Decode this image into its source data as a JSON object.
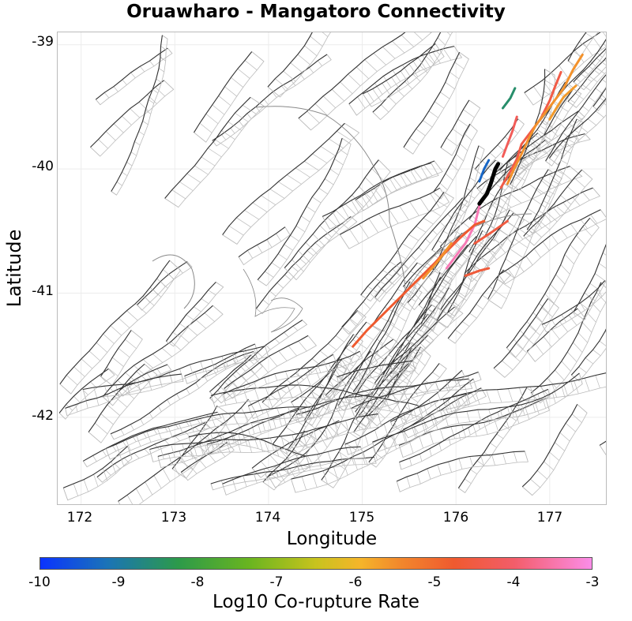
{
  "title": "Oruawharo - Mangatoro Connectivity",
  "axes": {
    "xlabel": "Longitude",
    "ylabel": "Latitude",
    "x_ticks": [
      "172",
      "173",
      "174",
      "175",
      "176",
      "177"
    ],
    "y_ticks": [
      "-39",
      "-40",
      "-41",
      "-42"
    ]
  },
  "colorbar": {
    "label": "Log10 Co-rupture Rate",
    "ticks": [
      "-10",
      "-9",
      "-8",
      "-7",
      "-6",
      "-5",
      "-4",
      "-3"
    ],
    "range": [
      -10,
      -3
    ]
  },
  "map": {
    "lon_range": [
      171.75,
      177.6
    ],
    "lat_range": [
      -42.7,
      -38.9
    ],
    "colors": {
      "fault_line": "#333333",
      "fault_patch": "#bbbbbb",
      "coast": "#888888",
      "target_fault": "#000000"
    },
    "target_fault": {
      "name": "Oruawharo - Mangatoro",
      "trace": [
        [
          176.25,
          -40.28
        ],
        [
          176.33,
          -40.2
        ],
        [
          176.37,
          -40.12
        ],
        [
          176.42,
          -40.0
        ],
        [
          176.45,
          -39.96
        ]
      ]
    },
    "connected_faults": [
      {
        "log10_rate": -3.4,
        "trace": [
          [
            175.9,
            -40.8
          ],
          [
            176.0,
            -40.7
          ],
          [
            176.1,
            -40.6
          ],
          [
            176.2,
            -40.45
          ],
          [
            176.25,
            -40.3
          ]
        ]
      },
      {
        "log10_rate": -5.0,
        "trace": [
          [
            174.9,
            -41.43
          ],
          [
            175.05,
            -41.3
          ],
          [
            175.25,
            -41.15
          ],
          [
            175.45,
            -41.0
          ],
          [
            175.65,
            -40.85
          ],
          [
            175.85,
            -40.7
          ],
          [
            176.05,
            -40.55
          ],
          [
            176.2,
            -40.45
          ],
          [
            176.3,
            -40.42
          ]
        ]
      },
      {
        "log10_rate": -4.7,
        "trace": [
          [
            176.2,
            -40.6
          ],
          [
            176.4,
            -40.5
          ],
          [
            176.55,
            -40.42
          ]
        ]
      },
      {
        "log10_rate": -4.8,
        "trace": [
          [
            175.75,
            -40.78
          ],
          [
            175.9,
            -40.65
          ],
          [
            176.05,
            -40.55
          ]
        ]
      },
      {
        "log10_rate": -5.6,
        "trace": [
          [
            175.65,
            -40.88
          ],
          [
            175.8,
            -40.75
          ],
          [
            175.95,
            -40.6
          ]
        ]
      },
      {
        "log10_rate": -4.8,
        "trace": [
          [
            176.1,
            -40.86
          ],
          [
            176.25,
            -40.82
          ],
          [
            176.35,
            -40.8
          ]
        ]
      },
      {
        "log10_rate": -9.2,
        "trace": [
          [
            176.25,
            -40.1
          ],
          [
            176.3,
            -40.0
          ],
          [
            176.35,
            -39.93
          ]
        ]
      },
      {
        "log10_rate": -8.3,
        "trace": [
          [
            176.5,
            -39.51
          ],
          [
            176.58,
            -39.43
          ],
          [
            176.63,
            -39.35
          ]
        ]
      },
      {
        "log10_rate": -4.3,
        "trace": [
          [
            176.5,
            -39.9
          ],
          [
            176.55,
            -39.8
          ],
          [
            176.6,
            -39.7
          ],
          [
            176.65,
            -39.58
          ]
        ]
      },
      {
        "log10_rate": -4.6,
        "trace": [
          [
            176.48,
            -40.15
          ],
          [
            176.58,
            -40.02
          ],
          [
            176.65,
            -39.92
          ],
          [
            176.7,
            -39.8
          ],
          [
            176.8,
            -39.7
          ],
          [
            176.9,
            -39.6
          ],
          [
            177.0,
            -39.45
          ],
          [
            177.05,
            -39.35
          ],
          [
            177.12,
            -39.22
          ]
        ]
      },
      {
        "log10_rate": -5.6,
        "trace": [
          [
            176.55,
            -40.12
          ],
          [
            176.62,
            -40.0
          ],
          [
            176.7,
            -39.88
          ],
          [
            176.78,
            -39.75
          ],
          [
            176.85,
            -39.65
          ],
          [
            176.95,
            -39.55
          ],
          [
            177.05,
            -39.45
          ],
          [
            177.15,
            -39.35
          ],
          [
            177.25,
            -39.2
          ],
          [
            177.35,
            -39.08
          ]
        ]
      },
      {
        "log10_rate": -5.7,
        "trace": [
          [
            177.0,
            -39.6
          ],
          [
            177.08,
            -39.5
          ],
          [
            177.15,
            -39.42
          ],
          [
            177.28,
            -39.33
          ]
        ]
      }
    ]
  }
}
